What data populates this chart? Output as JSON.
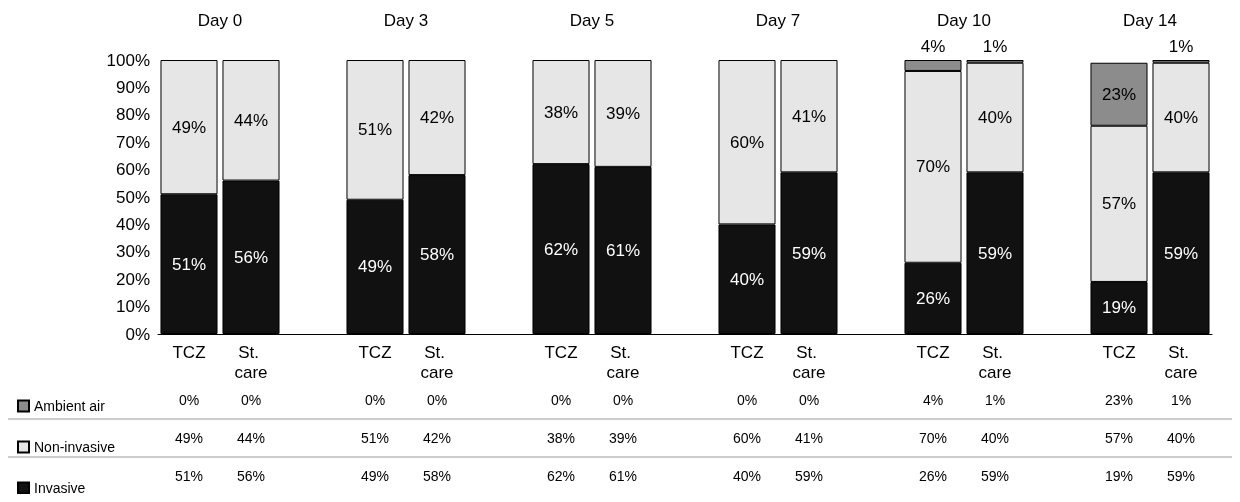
{
  "chart_data": {
    "type": "bar",
    "stacked": true,
    "categories": [
      "TCZ",
      "St. care",
      null,
      "TCZ",
      "St. care",
      null,
      "TCZ",
      "St. care",
      null,
      "TCZ",
      "St. care",
      null,
      "TCZ",
      "St. care",
      null,
      "TCZ",
      "St. care"
    ],
    "series": [
      {
        "name": "Invasive",
        "color": "#111111",
        "values": [
          51,
          56,
          null,
          49,
          58,
          null,
          62,
          61,
          null,
          40,
          59,
          null,
          26,
          59,
          null,
          19,
          59
        ],
        "value_labels": [
          "51%",
          "56%",
          null,
          "49%",
          "58%",
          null,
          "62%",
          "61%",
          null,
          "40%",
          "59%",
          null,
          "26%",
          "59%",
          null,
          "19%",
          "59%"
        ]
      },
      {
        "name": "Non-invasive",
        "color": "#e6e6e6",
        "values": [
          49,
          44,
          null,
          51,
          42,
          null,
          38,
          39,
          null,
          60,
          41,
          null,
          70,
          40,
          null,
          57,
          40
        ],
        "value_labels": [
          "49%",
          "44%",
          null,
          "51%",
          "42%",
          null,
          "38%",
          "39%",
          null,
          "60%",
          "41%",
          null,
          "70%",
          "40%",
          null,
          "57%",
          "40%"
        ]
      },
      {
        "name": "Ambient air",
        "color": "#8c8c8c",
        "values": [
          0,
          0,
          null,
          0,
          0,
          null,
          0,
          0,
          null,
          0,
          0,
          null,
          4,
          1,
          null,
          23,
          1
        ],
        "value_labels": [
          "0%",
          "0%",
          null,
          "0%",
          "0%",
          null,
          "0%",
          "0%",
          null,
          "0%",
          "0%",
          null,
          "4%",
          "1%",
          null,
          "23%",
          "1%"
        ]
      }
    ],
    "annotations": [
      "Day 0",
      "Day 3",
      "Day 5",
      "Day 7",
      "Day 10",
      "Day 14"
    ],
    "ylim": [
      0,
      100
    ],
    "yticks": [
      {
        "value": 0,
        "label": "0%"
      },
      {
        "value": 10,
        "label": "10%"
      },
      {
        "value": 20,
        "label": "20%"
      },
      {
        "value": 30,
        "label": "30%"
      },
      {
        "value": 40,
        "label": "40%"
      },
      {
        "value": 50,
        "label": "50%"
      },
      {
        "value": 60,
        "label": "60%"
      },
      {
        "value": 70,
        "label": "70%"
      },
      {
        "value": 80,
        "label": "80%"
      },
      {
        "value": 90,
        "label": "90%"
      },
      {
        "value": 100,
        "label": "100%"
      }
    ],
    "grid": false,
    "legend": "bottom left"
  }
}
